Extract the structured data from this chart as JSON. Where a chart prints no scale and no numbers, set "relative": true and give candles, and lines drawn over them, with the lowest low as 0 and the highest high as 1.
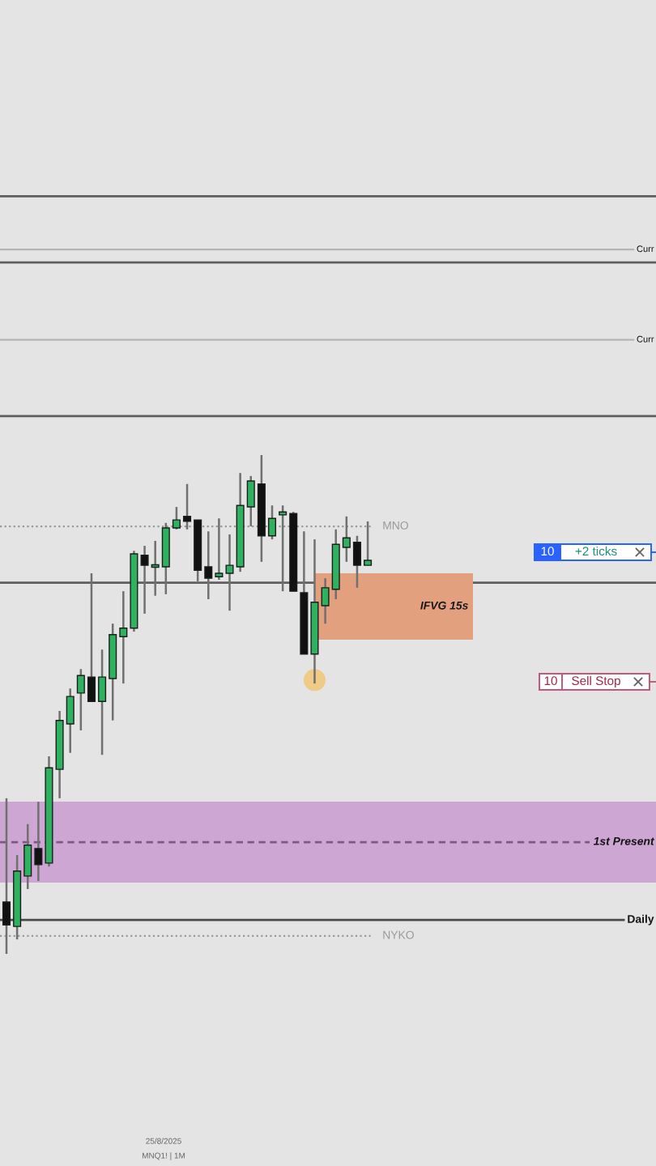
{
  "chart_data": {
    "type": "candlestick",
    "relative": true,
    "categories": [
      null,
      null,
      null,
      null,
      null,
      null,
      null,
      null,
      null,
      null,
      null,
      null,
      null,
      null,
      null,
      null,
      null,
      null,
      null,
      null,
      null,
      null,
      null,
      null,
      null,
      null,
      null,
      null,
      null,
      null,
      null,
      null,
      null,
      null,
      null
    ],
    "ohlc": [
      [
        0.104,
        0.312,
        0.0,
        0.058
      ],
      [
        0.055,
        0.198,
        0.029,
        0.166
      ],
      [
        0.156,
        0.26,
        0.13,
        0.218
      ],
      [
        0.211,
        0.305,
        0.146,
        0.179
      ],
      [
        0.182,
        0.396,
        0.175,
        0.373
      ],
      [
        0.37,
        0.487,
        0.312,
        0.468
      ],
      [
        0.461,
        0.532,
        0.403,
        0.516
      ],
      [
        0.523,
        0.571,
        0.448,
        0.558
      ],
      [
        0.555,
        0.763,
        0.506,
        0.506
      ],
      [
        0.506,
        0.61,
        0.399,
        0.555
      ],
      [
        0.552,
        0.662,
        0.468,
        0.64
      ],
      [
        0.636,
        0.727,
        0.542,
        0.653
      ],
      [
        0.653,
        0.808,
        0.646,
        0.802
      ],
      [
        0.799,
        0.818,
        0.682,
        0.779
      ],
      [
        0.776,
        0.828,
        0.718,
        0.779
      ],
      [
        0.776,
        0.864,
        0.721,
        0.854
      ],
      [
        0.854,
        0.896,
        0.851,
        0.87
      ],
      [
        0.877,
        0.942,
        0.851,
        0.867
      ],
      [
        0.87,
        0.87,
        0.747,
        0.769
      ],
      [
        0.776,
        0.847,
        0.711,
        0.753
      ],
      [
        0.756,
        0.873,
        0.75,
        0.763
      ],
      [
        0.763,
        0.841,
        0.688,
        0.779
      ],
      [
        0.776,
        0.964,
        0.766,
        0.899
      ],
      [
        0.896,
        0.958,
        0.857,
        0.948
      ],
      [
        0.942,
        1.0,
        0.786,
        0.838
      ],
      [
        0.838,
        0.899,
        0.831,
        0.873
      ],
      [
        0.88,
        0.899,
        0.727,
        0.886
      ],
      [
        0.883,
        0.886,
        0.727,
        0.727
      ],
      [
        0.724,
        0.847,
        0.601,
        0.601
      ],
      [
        0.601,
        0.831,
        0.542,
        0.705
      ],
      [
        0.698,
        0.753,
        0.662,
        0.734
      ],
      [
        0.731,
        0.851,
        0.711,
        0.821
      ],
      [
        0.815,
        0.877,
        0.786,
        0.834
      ],
      [
        0.825,
        0.838,
        0.734,
        0.779
      ],
      [
        0.779,
        0.867,
        0.779,
        0.789
      ]
    ],
    "colors": [
      "#111111",
      "#2eb260",
      "#2eb260",
      "#111111",
      "#2eb260",
      "#2eb260",
      "#2eb260",
      "#2eb260",
      "#111111",
      "#2eb260",
      "#2eb260",
      "#2eb260",
      "#2eb260",
      "#111111",
      "#2eb260",
      "#2eb260",
      "#2eb260",
      "#111111",
      "#111111",
      "#111111",
      "#2eb260",
      "#2eb260",
      "#2eb260",
      "#2eb260",
      "#111111",
      "#2eb260",
      "#2eb260",
      "#111111",
      "#111111",
      "#2eb260",
      "#2eb260",
      "#2eb260",
      "#2eb260",
      "#111111",
      "#2eb260"
    ],
    "series": [
      {
        "type": "scatter",
        "color": "#f2c46d",
        "marker": "circle",
        "values": [
          null,
          null,
          null,
          null,
          null,
          null,
          null,
          null,
          null,
          null,
          null,
          null,
          null,
          null,
          null,
          null,
          null,
          null,
          null,
          null,
          null,
          null,
          null,
          null,
          null,
          null,
          null,
          null,
          null,
          0.549,
          null,
          null,
          null,
          null,
          null
        ]
      }
    ],
    "ref_lines": [
      {
        "axis": "y",
        "value": 1.519,
        "color": "#5f5f5f",
        "line_style": "solid"
      },
      {
        "axis": "y",
        "value": 1.412,
        "label": "Curr",
        "color": "#b5b5b5",
        "line_style": "solid"
      },
      {
        "axis": "y",
        "value": 1.386,
        "color": "#5f5f5f",
        "line_style": "solid"
      },
      {
        "axis": "y",
        "value": 1.231,
        "label": "Curr",
        "color": "#b5b5b5",
        "line_style": "solid"
      },
      {
        "axis": "y",
        "value": 1.078,
        "color": "#5f5f5f",
        "line_style": "solid"
      },
      {
        "axis": "y",
        "value": 0.857,
        "label": "MNO",
        "color": "#9a9a9a",
        "line_style": "dotted"
      },
      {
        "axis": "y",
        "value": 0.744,
        "color": "#5f5f5f",
        "line_style": "solid"
      },
      {
        "axis": "y",
        "value": 0.224,
        "label": "1st Present",
        "color": "#7d5a80",
        "line_style": "dashed"
      },
      {
        "axis": "y",
        "value": 0.068,
        "label": "Daily",
        "color": "#4a4a4a",
        "line_style": "solid"
      },
      {
        "axis": "y",
        "value": 0.036,
        "label": "NYKO",
        "color": "#9a9a9a",
        "line_style": "dotted"
      }
    ],
    "bands": [
      {
        "axis": "y",
        "from": 0.143,
        "to": 0.305,
        "color": "#cea6d3"
      },
      {
        "axis": "y",
        "from": 0.63,
        "to": 0.763,
        "label": "IFVG 15s",
        "color": "#e3a07f"
      }
    ],
    "annotations": [
      "10",
      "+2 ticks",
      "10",
      "Sell Stop",
      "25/8/2025",
      "MNQ1! | 1M"
    ]
  }
}
